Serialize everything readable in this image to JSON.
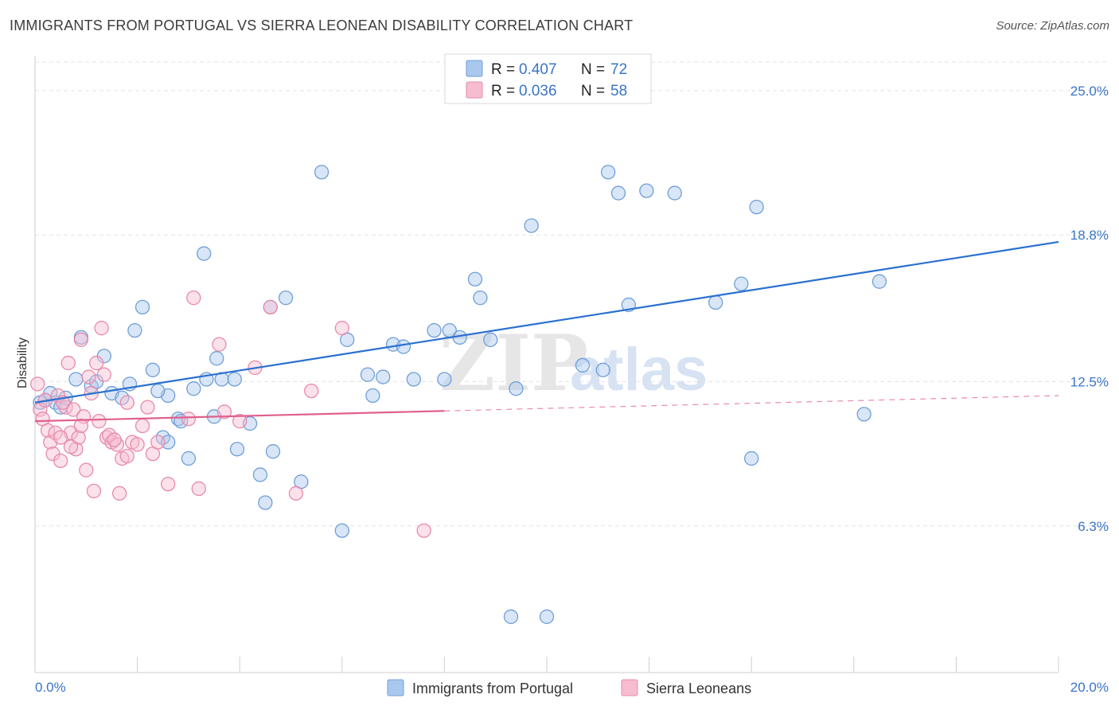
{
  "title": "IMMIGRANTS FROM PORTUGAL VS SIERRA LEONEAN DISABILITY CORRELATION CHART",
  "source": "Source: ZipAtlas.com",
  "legend_top": [
    {
      "r_label": "R = ",
      "r_value": "0.407",
      "n_label": "N = ",
      "n_value": "72",
      "color": "#aac8ee",
      "stroke": "#6f9fd8"
    },
    {
      "r_label": "R = ",
      "r_value": "0.036",
      "n_label": "N = ",
      "n_value": "58",
      "color": "#f6bcd0",
      "stroke": "#e88aab"
    }
  ],
  "legend_bottom": [
    {
      "label": "Immigrants from Portugal",
      "color": "#aac8ee",
      "stroke": "#6f9fd8"
    },
    {
      "label": "Sierra Leoneans",
      "color": "#f6bcd0",
      "stroke": "#e88aab"
    }
  ],
  "watermark": {
    "zip": "ZIP",
    "atlas": "atlas"
  },
  "chart_data": {
    "type": "scatter",
    "title": "IMMIGRANTS FROM PORTUGAL VS SIERRA LEONEAN DISABILITY CORRELATION CHART",
    "xlabel": "",
    "ylabel": "Disability",
    "xlim": [
      0.0,
      20.0
    ],
    "ylim": [
      0.0,
      26.5
    ],
    "x_tick_labels": [
      "0.0%",
      "20.0%"
    ],
    "y_tick_values": [
      6.3,
      12.5,
      18.8,
      25.0
    ],
    "y_tick_labels": [
      "6.3%",
      "12.5%",
      "18.8%",
      "25.0%"
    ],
    "grid": "horizontal dashed",
    "series": [
      {
        "name": "Immigrants from Portugal",
        "color": "#6f9fd8",
        "fill": "#aac8ee",
        "trend": {
          "x": [
            0.0,
            20.0
          ],
          "y": [
            11.6,
            18.5
          ],
          "dashed_from": null
        },
        "points": [
          [
            0.1,
            11.6
          ],
          [
            0.2,
            11.7
          ],
          [
            0.3,
            12.0
          ],
          [
            0.4,
            11.6
          ],
          [
            0.5,
            11.4
          ],
          [
            0.6,
            11.8
          ],
          [
            0.8,
            12.6
          ],
          [
            0.9,
            14.4
          ],
          [
            1.1,
            12.3
          ],
          [
            1.2,
            12.5
          ],
          [
            1.35,
            13.6
          ],
          [
            1.5,
            12.0
          ],
          [
            1.7,
            11.8
          ],
          [
            1.85,
            12.4
          ],
          [
            1.95,
            14.7
          ],
          [
            2.1,
            15.7
          ],
          [
            2.3,
            13.0
          ],
          [
            2.5,
            10.1
          ],
          [
            2.6,
            9.9
          ],
          [
            2.6,
            11.9
          ],
          [
            2.8,
            10.9
          ],
          [
            2.85,
            10.8
          ],
          [
            3.0,
            9.2
          ],
          [
            3.1,
            12.2
          ],
          [
            3.3,
            18.0
          ],
          [
            3.35,
            12.6
          ],
          [
            3.5,
            11.0
          ],
          [
            3.55,
            13.5
          ],
          [
            3.65,
            12.6
          ],
          [
            3.9,
            12.6
          ],
          [
            3.95,
            9.6
          ],
          [
            4.2,
            10.7
          ],
          [
            4.4,
            8.5
          ],
          [
            4.5,
            7.3
          ],
          [
            4.6,
            15.7
          ],
          [
            4.65,
            9.5
          ],
          [
            4.9,
            16.1
          ],
          [
            5.2,
            8.2
          ],
          [
            5.6,
            21.5
          ],
          [
            6.0,
            6.1
          ],
          [
            6.1,
            14.3
          ],
          [
            6.5,
            12.8
          ],
          [
            6.6,
            11.9
          ],
          [
            6.8,
            12.7
          ],
          [
            7.0,
            14.1
          ],
          [
            7.2,
            14.0
          ],
          [
            7.4,
            12.6
          ],
          [
            7.8,
            14.7
          ],
          [
            8.0,
            12.6
          ],
          [
            8.1,
            14.7
          ],
          [
            8.3,
            14.4
          ],
          [
            8.6,
            16.9
          ],
          [
            8.7,
            16.1
          ],
          [
            8.9,
            14.3
          ],
          [
            9.3,
            2.4
          ],
          [
            9.4,
            12.2
          ],
          [
            9.7,
            19.2
          ],
          [
            10.7,
            13.2
          ],
          [
            11.1,
            13.0
          ],
          [
            11.2,
            21.5
          ],
          [
            11.4,
            20.6
          ],
          [
            11.6,
            15.8
          ],
          [
            11.95,
            20.7
          ],
          [
            12.5,
            20.6
          ],
          [
            13.3,
            15.9
          ],
          [
            13.8,
            16.7
          ],
          [
            14.0,
            9.2
          ],
          [
            14.1,
            20.0
          ],
          [
            16.2,
            11.1
          ],
          [
            16.5,
            16.8
          ],
          [
            10.0,
            2.4
          ],
          [
            2.4,
            12.1
          ]
        ]
      },
      {
        "name": "Sierra Leoneans",
        "color": "#e88aab",
        "fill": "#f6bcd0",
        "trend": {
          "x": [
            0.0,
            20.0
          ],
          "y": [
            10.8,
            11.9
          ],
          "dashed_from": 8.0
        },
        "points": [
          [
            0.05,
            12.4
          ],
          [
            0.1,
            11.3
          ],
          [
            0.15,
            10.9
          ],
          [
            0.2,
            11.7
          ],
          [
            0.25,
            10.4
          ],
          [
            0.3,
            9.9
          ],
          [
            0.35,
            9.4
          ],
          [
            0.4,
            10.3
          ],
          [
            0.45,
            11.9
          ],
          [
            0.5,
            9.1
          ],
          [
            0.6,
            11.4
          ],
          [
            0.65,
            13.3
          ],
          [
            0.7,
            10.3
          ],
          [
            0.75,
            11.3
          ],
          [
            0.8,
            9.6
          ],
          [
            0.85,
            10.1
          ],
          [
            0.9,
            14.3
          ],
          [
            0.95,
            11.0
          ],
          [
            1.0,
            8.7
          ],
          [
            1.05,
            12.7
          ],
          [
            1.1,
            12.0
          ],
          [
            1.15,
            7.8
          ],
          [
            1.2,
            13.3
          ],
          [
            1.25,
            10.8
          ],
          [
            1.3,
            14.8
          ],
          [
            1.35,
            12.8
          ],
          [
            1.4,
            10.1
          ],
          [
            1.5,
            9.9
          ],
          [
            1.6,
            9.8
          ],
          [
            1.65,
            7.7
          ],
          [
            1.7,
            9.2
          ],
          [
            1.8,
            9.3
          ],
          [
            1.9,
            9.9
          ],
          [
            2.1,
            10.6
          ],
          [
            2.2,
            11.4
          ],
          [
            2.3,
            9.4
          ],
          [
            2.6,
            8.1
          ],
          [
            3.0,
            10.9
          ],
          [
            3.1,
            16.1
          ],
          [
            3.2,
            7.9
          ],
          [
            3.6,
            14.1
          ],
          [
            3.7,
            11.2
          ],
          [
            4.0,
            10.8
          ],
          [
            4.3,
            13.1
          ],
          [
            4.6,
            15.7
          ],
          [
            5.1,
            7.7
          ],
          [
            5.4,
            12.1
          ],
          [
            6.0,
            14.8
          ],
          [
            7.6,
            6.1
          ],
          [
            0.5,
            10.1
          ],
          [
            1.45,
            10.2
          ],
          [
            2.0,
            9.8
          ],
          [
            1.8,
            11.6
          ],
          [
            0.55,
            11.6
          ],
          [
            0.9,
            10.6
          ],
          [
            2.4,
            9.9
          ],
          [
            1.55,
            10.0
          ],
          [
            0.7,
            9.7
          ]
        ]
      }
    ]
  }
}
